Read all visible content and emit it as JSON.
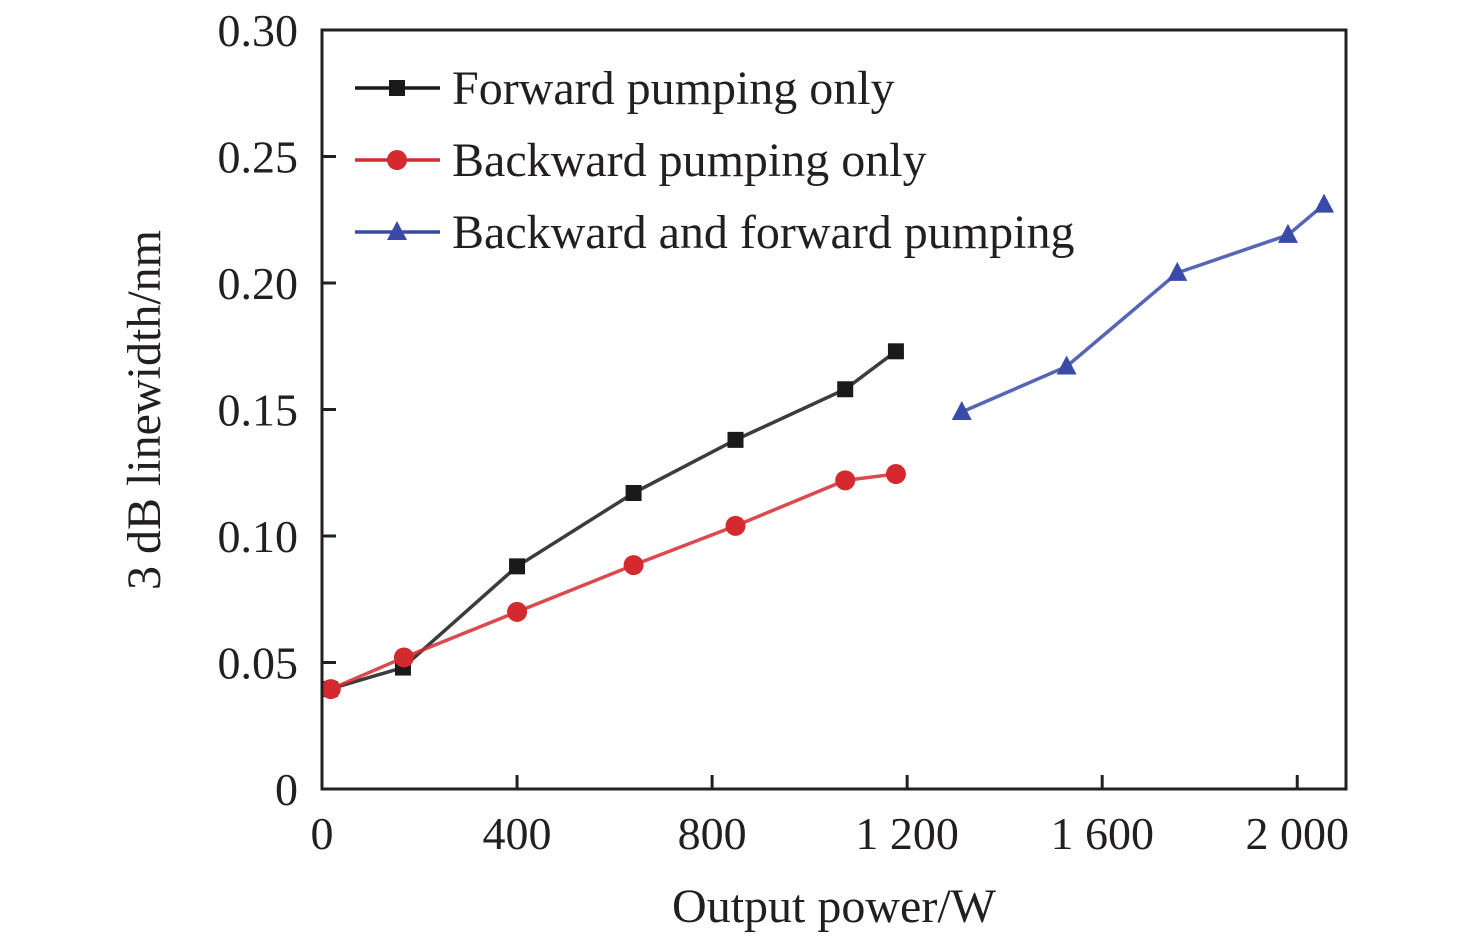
{
  "chart_data": {
    "type": "line",
    "title": "",
    "xlabel": "Output power/W",
    "ylabel": "3 dB linewidth/nm",
    "xlim": [
      0,
      2100
    ],
    "ylim": [
      0,
      0.3
    ],
    "xticks": [
      0,
      400,
      800,
      1200,
      1600,
      2000
    ],
    "xtick_labels": [
      "0",
      "400",
      "800",
      "1 200",
      "1 600",
      "2 000"
    ],
    "yticks": [
      0,
      0.05,
      0.1,
      0.15,
      0.2,
      0.25,
      0.3
    ],
    "ytick_labels": [
      "0",
      "0.05",
      "0.10",
      "0.15",
      "0.20",
      "0.25",
      "0.30"
    ],
    "grid": false,
    "legend_position": "top-left",
    "series": [
      {
        "name": "Forward pumping only",
        "color": "#1a1a1a",
        "marker": "square",
        "x": [
          16,
          166,
          400,
          639,
          848,
          1073,
          1177
        ],
        "y": [
          0.0395,
          0.048,
          0.088,
          0.117,
          0.138,
          0.158,
          0.173
        ]
      },
      {
        "name": "Backward pumping only",
        "color": "#d42a2f",
        "marker": "circle",
        "x": [
          18,
          168,
          400,
          639,
          848,
          1073,
          1177
        ],
        "y": [
          0.0395,
          0.052,
          0.07,
          0.0885,
          0.104,
          0.122,
          0.1245
        ]
      },
      {
        "name": "Backward and forward pumping",
        "color": "#3a4aa8",
        "marker": "triangle",
        "x": [
          1312,
          1527,
          1754,
          1981,
          2055
        ],
        "y": [
          0.149,
          0.167,
          0.204,
          0.219,
          0.231
        ]
      }
    ]
  }
}
